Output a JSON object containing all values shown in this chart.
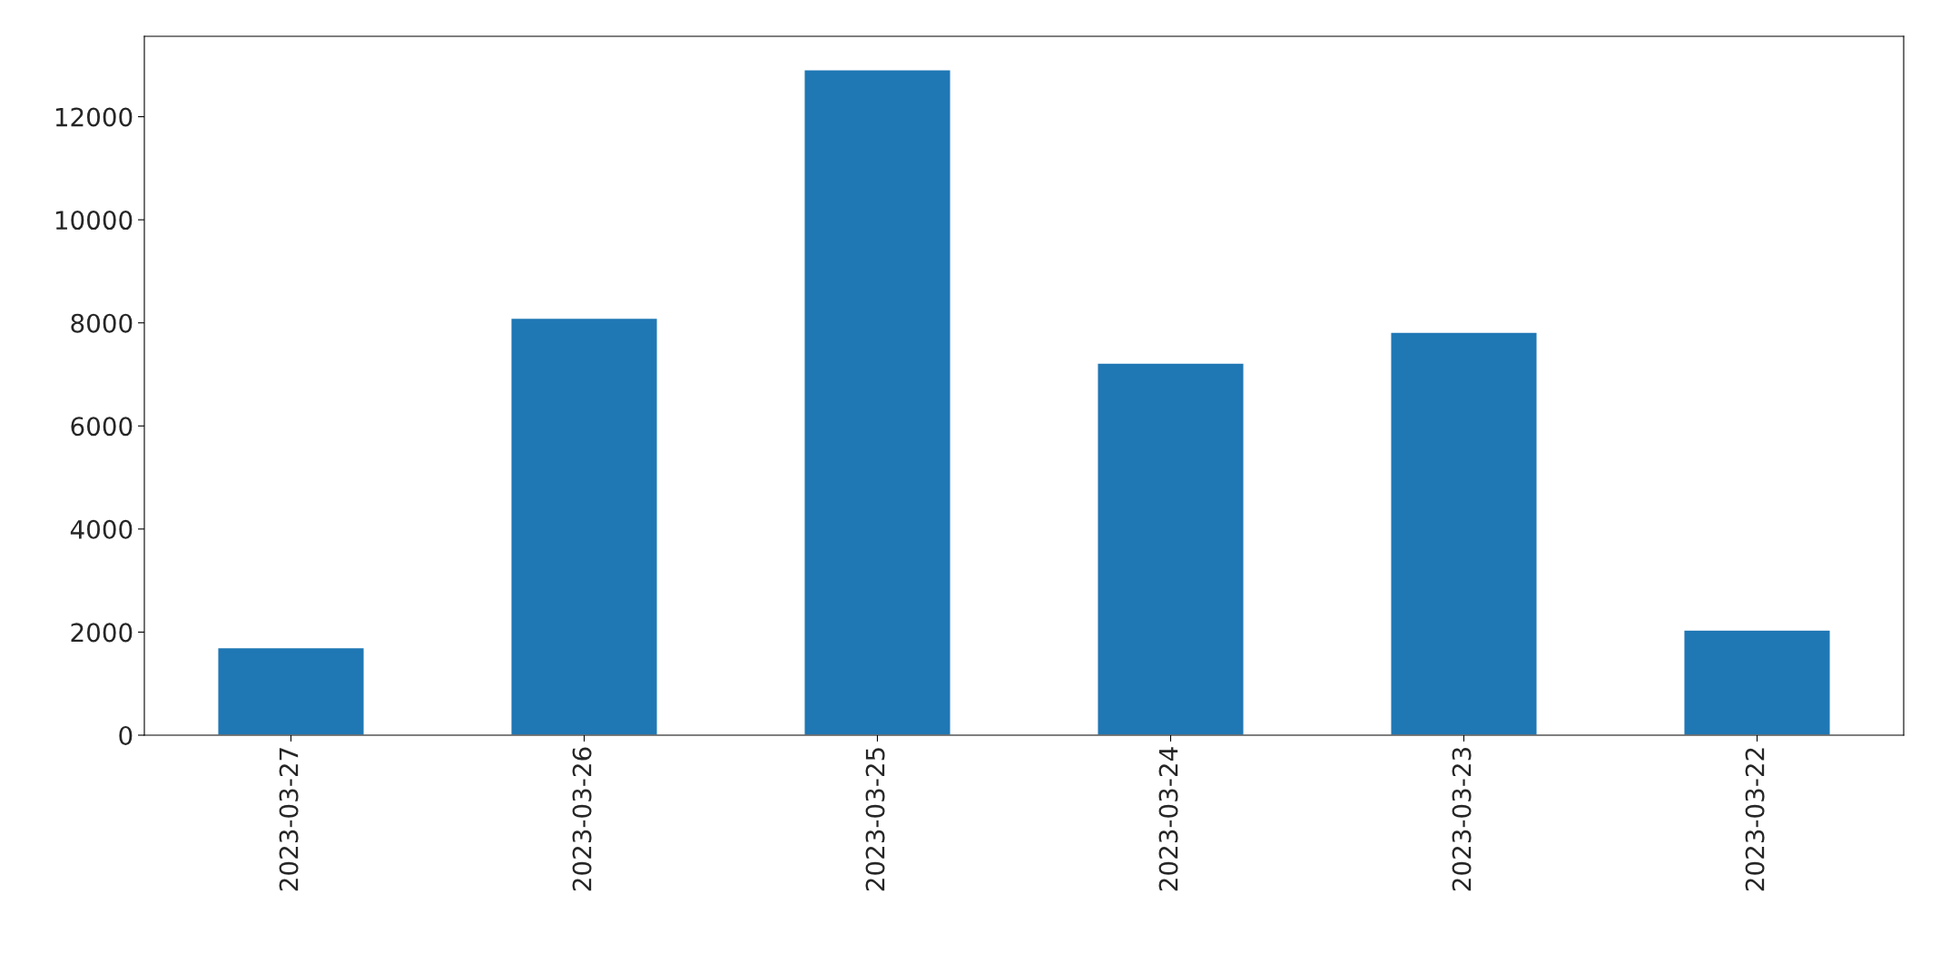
{
  "chart_data": {
    "type": "bar",
    "categories": [
      "2023-03-27",
      "2023-03-26",
      "2023-03-25",
      "2023-03-24",
      "2023-03-23",
      "2023-03-22"
    ],
    "values": [
      1700,
      8090,
      12910,
      7220,
      7820,
      2040
    ],
    "color": "#1f77b4",
    "ylim": [
      0,
      13560
    ],
    "yticks": [
      0,
      2000,
      4000,
      6000,
      8000,
      10000,
      12000
    ],
    "grid": false,
    "legend": false
  }
}
